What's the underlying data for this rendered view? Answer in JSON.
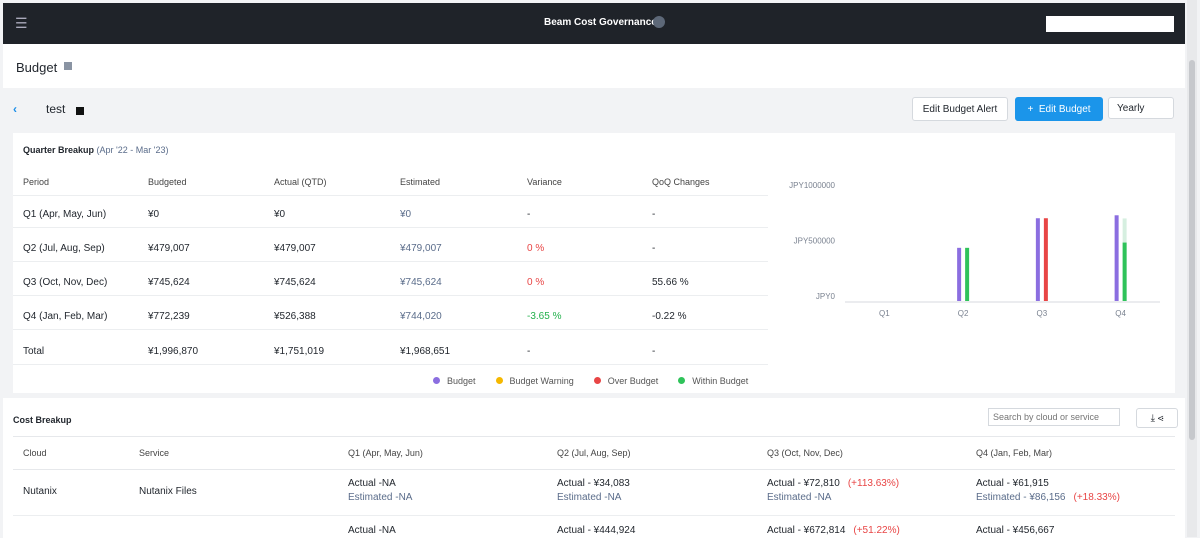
{
  "header": {
    "app_name": "Beam Cost Governance"
  },
  "page": {
    "title": "Budget"
  },
  "budget": {
    "name": "test",
    "buttons": [
      "Edit Budget Alert",
      "Edit Budget"
    ],
    "period": "Yearly"
  },
  "quarter_breakup": {
    "title": "Quarter Breakup",
    "range": "(Apr '22 - Mar '23)",
    "columns": [
      "Period",
      "Budgeted",
      "Actual (QTD)",
      "Estimated",
      "Variance",
      "QoQ Changes"
    ],
    "rows": [
      [
        "Q1 (Apr, May, Jun)",
        "¥0",
        "¥0",
        "¥0",
        "-",
        "-"
      ],
      [
        "Q2 (Jul, Aug, Sep)",
        "¥479,007",
        "¥479,007",
        "¥479,007",
        "0 %",
        "-"
      ],
      [
        "Q3 (Oct, Nov, Dec)",
        "¥745,624",
        "¥745,624",
        "¥745,624",
        "0 %",
        "55.66 %"
      ],
      [
        "Q4 (Jan, Feb, Mar)",
        "¥772,239",
        "¥526,388",
        "¥744,020",
        "-3.65 %",
        "-0.22 %"
      ],
      [
        "Total",
        "¥1,996,870",
        "¥1,751,019",
        "¥1,968,651",
        "-",
        "-"
      ]
    ]
  },
  "chart_data": {
    "type": "bar",
    "categories": [
      "Q1",
      "Q2",
      "Q3",
      "Q4"
    ],
    "series": [
      {
        "name": "Budget",
        "color": "#8b6ee0",
        "values": [
          0,
          479007,
          745624,
          772239
        ]
      },
      {
        "name": "Budget Warning",
        "color": "#f5b800",
        "values": [
          null,
          null,
          null,
          null
        ]
      },
      {
        "name": "Over Budget",
        "color": "#e84545",
        "values": [
          null,
          null,
          745624,
          null
        ]
      },
      {
        "color": "#d6efe0",
        "values": [
          null,
          null,
          null,
          744020
        ]
      },
      {
        "name": "Within Budget",
        "color": "#2fc35a",
        "values": [
          null,
          479007,
          null,
          526388
        ]
      }
    ],
    "ylim": [
      0,
      1000000
    ],
    "yticks": [
      {
        "value": 0,
        "label": "JPY0"
      },
      {
        "value": 500000,
        "label": "JPY500000"
      },
      {
        "value": 1000000,
        "label": "JPY1000000"
      }
    ]
  },
  "cost_breakup": {
    "title": "Cost Breakup",
    "search_placeholder": "Search by cloud or service",
    "columns": [
      "Cloud",
      "Service",
      "Q1 (Apr, May, Jun)",
      "Q2 (Jul, Aug, Sep)",
      "Q3 (Oct, Nov, Dec)",
      "Q4 (Jan, Feb, Mar)"
    ],
    "rows": [
      [
        "Nutanix",
        "Nutanix Files",
        {
          "actual": "Actual -NA",
          "estimated": "Estimated -NA"
        },
        {
          "actual": "Actual - ¥34,083",
          "estimated": "Estimated -NA"
        },
        {
          "actual": "Actual - ¥72,810",
          "actual_change": "(+113.63%)",
          "estimated": "Estimated -NA"
        },
        {
          "actual": "Actual - ¥61,915",
          "estimated": "Estimated - ¥86,156",
          "estimated_change": "(+18.33%)"
        }
      ],
      [
        null,
        null,
        {
          "actual": "Actual -NA"
        },
        {
          "actual": "Actual - ¥444,924"
        },
        {
          "actual": "Actual - ¥672,814",
          "actual_change": "(+51.22%)"
        },
        {
          "actual": "Actual - ¥456,667"
        }
      ]
    ]
  }
}
